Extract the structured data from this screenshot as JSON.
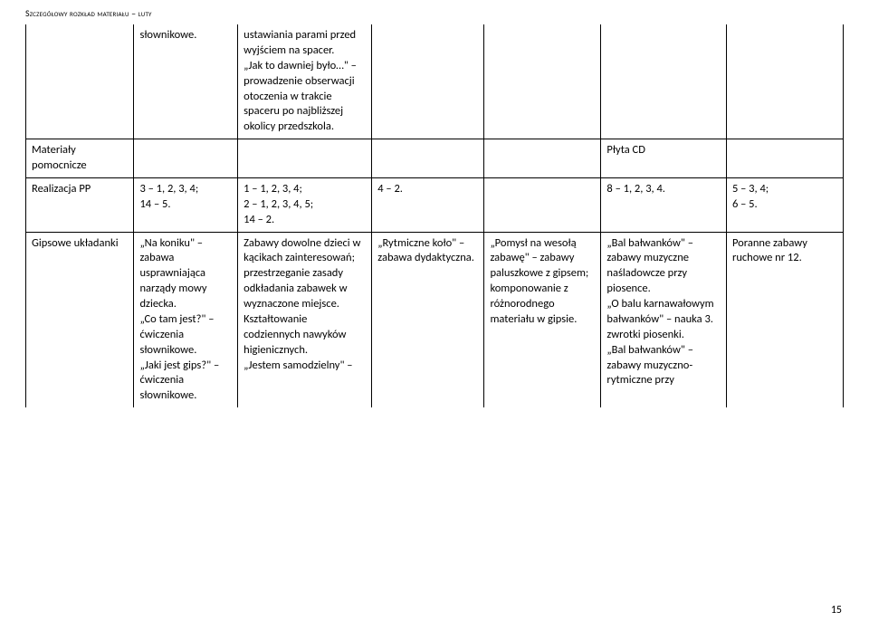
{
  "header": "Szczegółowy rozkład materiału – luty",
  "page_number": "15",
  "rows": {
    "top": {
      "c0": "",
      "c1": "słownikowe.",
      "c2": "ustawiania parami przed wyjściem na spacer.\n„Jak to dawniej było…\" – prowadzenie obserwacji otoczenia w trakcie spaceru po najbliższej okolicy przedszkola.",
      "c3": "",
      "c4": "",
      "c5": "",
      "c6": ""
    },
    "mat": {
      "c0": "Materiały pomocnicze",
      "c1": "",
      "c2": "",
      "c3": "",
      "c4": "",
      "c5": "Płyta CD",
      "c6": ""
    },
    "pp": {
      "c0": "Realizacja PP",
      "c1": "3 – 1, 2, 3, 4;\n14 – 5.",
      "c2": "1 – 1, 2, 3, 4;\n2 – 1, 2, 3, 4, 5;\n14 – 2.",
      "c3": "4 – 2.",
      "c4": "",
      "c5": "8 – 1, 2, 3, 4.",
      "c6": "5 – 3, 4;\n6 – 5."
    },
    "gips": {
      "c0": "Gipsowe układanki",
      "c1": "„Na koniku\" – zabawa usprawniająca narządy mowy dziecka.\n„Co tam jest?\" – ćwiczenia słownikowe.\n„Jaki jest gips?\" – ćwiczenia słownikowe.",
      "c2": "Zabawy dowolne dzieci w kącikach zainteresowań; przestrzeganie zasady odkładania zabawek w wyznaczone miejsce. Kształtowanie codziennych nawyków higienicznych.\n„Jestem samodzielny\" –",
      "c3": "„Rytmiczne koło\" – zabawa dydaktyczna.",
      "c4": "„Pomysł na wesołą zabawę\" – zabawy paluszkowe z gipsem; komponowanie z różnorodnego materiału w gipsie.",
      "c5": "„Bal bałwanków\" – zabawy muzyczne naśladowcze przy piosence.\n„O balu karnawałowym bałwanków\" – nauka 3. zwrotki piosenki.\n„Bal bałwanków\" – zabawy muzyczno-rytmiczne przy",
      "c6": "Poranne zabawy ruchowe nr 12."
    }
  }
}
